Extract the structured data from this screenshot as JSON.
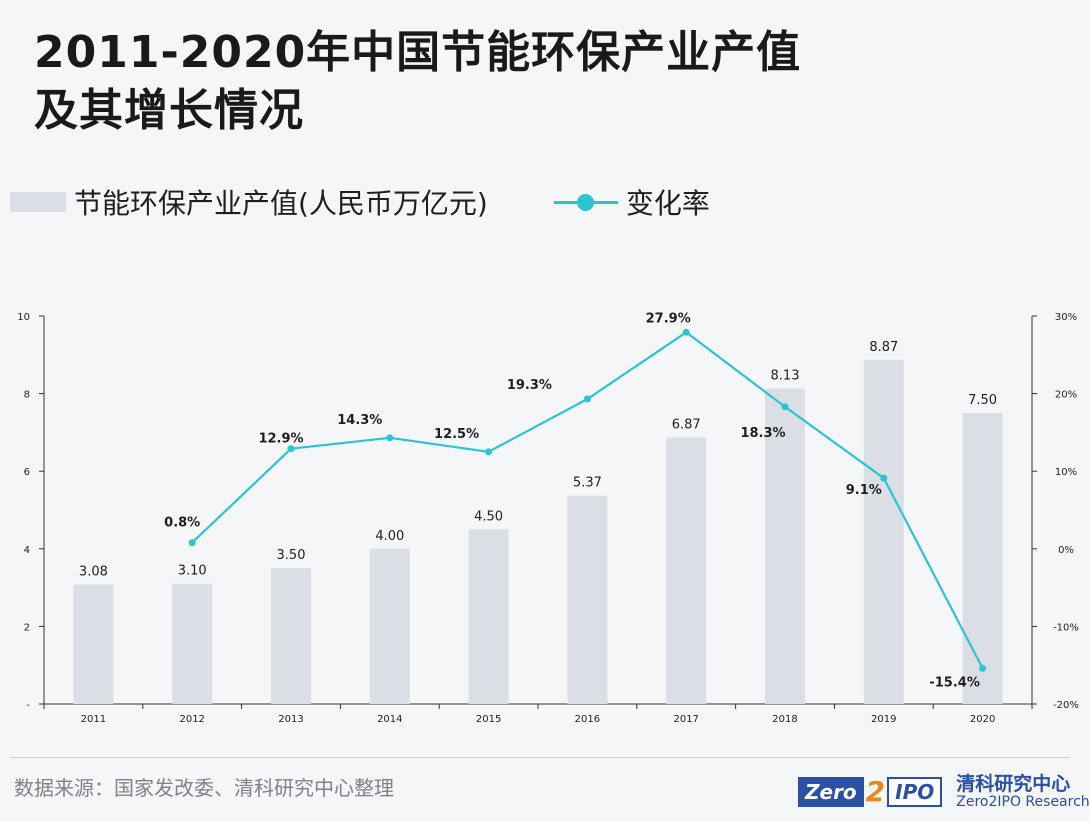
{
  "title": {
    "line1": "2011-2020年中国节能环保产业产值",
    "line2": "及其增长情况"
  },
  "legend": {
    "bar_label": "节能环保产业产值(人民币万亿元)",
    "line_label": "变化率"
  },
  "colors": {
    "bar": "#dcdee6",
    "line": "#2cc4d0",
    "text": "#1f1f1f",
    "axis": "#333333"
  },
  "chart_data": {
    "type": "bar",
    "categories": [
      "2011",
      "2012",
      "2013",
      "2014",
      "2015",
      "2016",
      "2017",
      "2018",
      "2019",
      "2020"
    ],
    "series": [
      {
        "name": "节能环保产业产值(人民币万亿元)",
        "type": "bar",
        "axis": "left",
        "values": [
          3.08,
          3.1,
          3.5,
          4.0,
          4.5,
          5.37,
          6.87,
          8.13,
          8.87,
          7.5
        ],
        "labels": [
          "3.08",
          "3.10",
          "3.50",
          "4.00",
          "4.50",
          "5.37",
          "6.87",
          "8.13",
          "8.87",
          "7.50"
        ]
      },
      {
        "name": "变化率",
        "type": "line",
        "axis": "right",
        "values": [
          null,
          0.8,
          12.9,
          14.3,
          12.5,
          19.3,
          27.9,
          18.3,
          9.1,
          -15.4
        ],
        "labels": [
          "",
          "0.8%",
          "12.9%",
          "14.3%",
          "12.5%",
          "19.3%",
          "27.9%",
          "18.3%",
          "9.1%",
          "-15.4%"
        ]
      }
    ],
    "y_left": {
      "ylim": [
        0,
        10
      ],
      "ticks": [
        0,
        2,
        4,
        6,
        8,
        10
      ],
      "tick_labels": [
        "-",
        "2",
        "4",
        "6",
        "8",
        "10"
      ]
    },
    "y_right": {
      "ylim": [
        -20,
        30
      ],
      "ticks": [
        -20,
        -10,
        0,
        10,
        20,
        30
      ],
      "tick_labels": [
        "-20%",
        "-10%",
        "0%",
        "10%",
        "20%",
        "30%"
      ]
    },
    "grid": false
  },
  "footer": {
    "source": "数据来源：国家发改委、清科研究中心整理",
    "logo_zero": "Zero",
    "logo_two": "2",
    "logo_ipo": "IPO",
    "logo_cn": "清科研究中心",
    "logo_en": "Zero2IPO Research"
  }
}
